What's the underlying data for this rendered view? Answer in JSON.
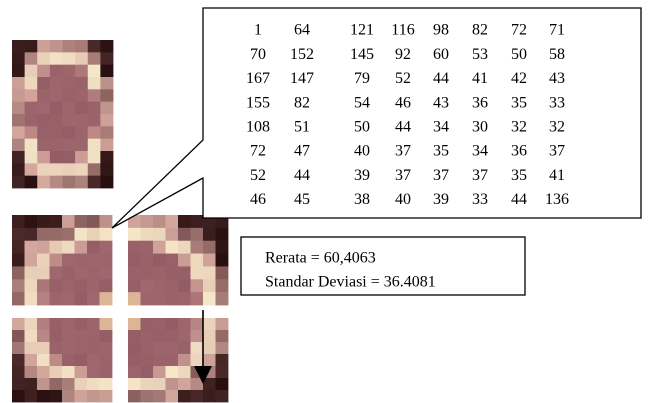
{
  "matrix": {
    "rows": [
      [
        1,
        64,
        121,
        116,
        98,
        82,
        72,
        71
      ],
      [
        70,
        152,
        145,
        92,
        60,
        53,
        50,
        58
      ],
      [
        167,
        147,
        79,
        52,
        44,
        41,
        42,
        43
      ],
      [
        155,
        82,
        54,
        46,
        43,
        36,
        35,
        33
      ],
      [
        108,
        51,
        50,
        44,
        34,
        30,
        32,
        32
      ],
      [
        72,
        47,
        40,
        37,
        35,
        34,
        36,
        37
      ],
      [
        52,
        44,
        39,
        37,
        37,
        37,
        35,
        41
      ],
      [
        46,
        45,
        38,
        40,
        39,
        33,
        44,
        136
      ]
    ]
  },
  "stats": {
    "mean": "Rerata = 60,4063",
    "std": "Standar Deviasi = 36.4081"
  }
}
